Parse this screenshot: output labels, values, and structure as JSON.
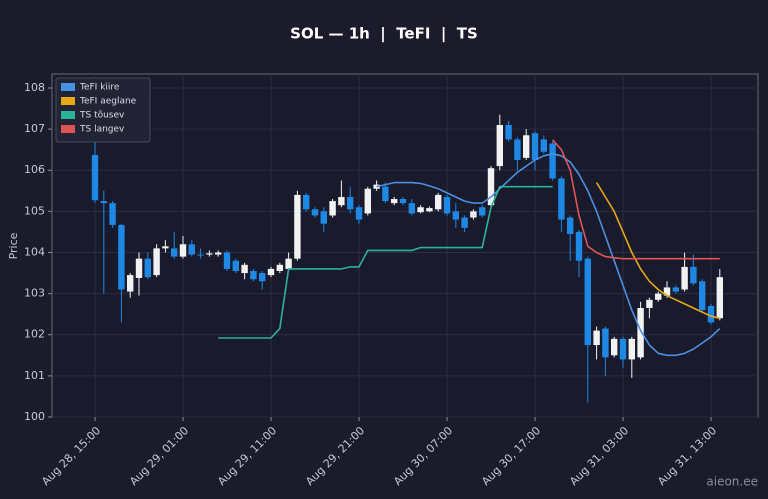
{
  "chart_data": {
    "type": "candlestick",
    "title": "SOL — 1h  |  TeFI  |  TS",
    "y_label": "Price",
    "watermark": "aieon.ee",
    "categories": [
      "Aug 28, 15:00",
      "Aug 28, 16:00",
      "Aug 28, 17:00",
      "Aug 28, 18:00",
      "Aug 28, 19:00",
      "Aug 28, 20:00",
      "Aug 28, 21:00",
      "Aug 28, 22:00",
      "Aug 28, 23:00",
      "Aug 29, 00:00",
      "Aug 29, 01:00",
      "Aug 29, 02:00",
      "Aug 29, 03:00",
      "Aug 29, 04:00",
      "Aug 29, 05:00",
      "Aug 29, 06:00",
      "Aug 29, 07:00",
      "Aug 29, 08:00",
      "Aug 29, 09:00",
      "Aug 29, 10:00",
      "Aug 29, 11:00",
      "Aug 29, 12:00",
      "Aug 29, 13:00",
      "Aug 29, 14:00",
      "Aug 29, 15:00",
      "Aug 29, 16:00",
      "Aug 29, 17:00",
      "Aug 29, 18:00",
      "Aug 29, 19:00",
      "Aug 29, 20:00",
      "Aug 29, 21:00",
      "Aug 29, 22:00",
      "Aug 29, 23:00",
      "Aug 30, 00:00",
      "Aug 30, 01:00",
      "Aug 30, 02:00",
      "Aug 30, 03:00",
      "Aug 30, 04:00",
      "Aug 30, 05:00",
      "Aug 30, 06:00",
      "Aug 30, 07:00",
      "Aug 30, 08:00",
      "Aug 30, 09:00",
      "Aug 30, 10:00",
      "Aug 30, 11:00",
      "Aug 30, 12:00",
      "Aug 30, 13:00",
      "Aug 30, 14:00",
      "Aug 30, 15:00",
      "Aug 30, 16:00",
      "Aug 30, 17:00",
      "Aug 30, 18:00",
      "Aug 30, 19:00",
      "Aug 30, 20:00",
      "Aug 30, 21:00",
      "Aug 30, 22:00",
      "Aug 30, 23:00",
      "Aug 31, 00:00",
      "Aug 31, 01:00",
      "Aug 31, 02:00",
      "Aug 31, 03:00",
      "Aug 31, 04:00",
      "Aug 31, 05:00",
      "Aug 31, 06:00",
      "Aug 31, 07:00",
      "Aug 31, 08:00",
      "Aug 31, 09:00",
      "Aug 31, 10:00",
      "Aug 31, 11:00",
      "Aug 31, 12:00",
      "Aug 31, 13:00",
      "Aug 31, 14:00"
    ],
    "open": [
      106.37,
      105.25,
      105.2,
      104.67,
      103.05,
      103.38,
      103.85,
      103.45,
      104.1,
      104.1,
      103.9,
      104.2,
      103.95,
      103.95,
      103.95,
      104.0,
      103.8,
      103.5,
      103.55,
      103.5,
      103.45,
      103.55,
      103.6,
      103.85,
      105.4,
      105.05,
      105.0,
      104.9,
      105.15,
      105.35,
      105.1,
      104.95,
      105.55,
      105.6,
      105.2,
      105.3,
      105.2,
      104.98,
      105.0,
      105.05,
      105.35,
      105.0,
      104.85,
      104.85,
      105.1,
      105.15,
      106.1,
      107.1,
      106.75,
      106.3,
      106.9,
      106.75,
      106.65,
      105.8,
      104.85,
      104.5,
      103.85,
      101.75,
      102.15,
      101.5,
      101.9,
      101.4,
      101.45,
      102.65,
      102.85,
      102.95,
      103.15,
      103.1,
      103.65,
      103.3,
      102.7,
      102.4
    ],
    "high": [
      106.7,
      105.5,
      105.25,
      104.7,
      103.5,
      104.0,
      104.0,
      104.2,
      104.3,
      104.5,
      104.4,
      104.3,
      104.1,
      104.05,
      104.05,
      104.05,
      103.85,
      103.75,
      103.6,
      103.55,
      103.65,
      103.75,
      104.0,
      105.5,
      105.45,
      105.1,
      105.1,
      105.3,
      105.75,
      105.6,
      105.15,
      105.6,
      105.75,
      105.7,
      105.35,
      105.35,
      105.3,
      105.15,
      105.12,
      105.45,
      105.4,
      105.2,
      104.9,
      105.05,
      105.15,
      106.1,
      107.35,
      107.2,
      106.8,
      107.0,
      106.95,
      106.85,
      106.7,
      105.85,
      104.9,
      104.55,
      103.9,
      102.2,
      102.2,
      101.95,
      101.95,
      101.95,
      102.8,
      102.9,
      103.05,
      103.3,
      103.2,
      104.0,
      103.95,
      103.35,
      102.75,
      103.6
    ],
    "low": [
      105.2,
      103.0,
      104.6,
      102.3,
      102.9,
      102.95,
      103.35,
      103.4,
      104.0,
      103.85,
      103.85,
      103.9,
      103.85,
      103.9,
      103.9,
      103.55,
      103.5,
      103.35,
      103.3,
      103.1,
      103.4,
      103.5,
      103.55,
      103.8,
      105.0,
      104.85,
      104.5,
      104.85,
      105.1,
      104.95,
      104.7,
      104.9,
      105.5,
      105.2,
      105.15,
      105.15,
      104.9,
      104.95,
      104.98,
      105.0,
      104.9,
      104.6,
      104.5,
      104.8,
      104.85,
      105.1,
      106.0,
      106.7,
      106.0,
      106.25,
      106.0,
      106.4,
      105.75,
      104.5,
      103.8,
      103.4,
      100.35,
      101.4,
      101.0,
      101.45,
      101.2,
      100.95,
      101.4,
      102.4,
      102.8,
      102.9,
      103.0,
      103.05,
      103.2,
      102.55,
      102.25,
      102.35
    ],
    "close": [
      105.27,
      105.2,
      104.67,
      103.1,
      103.45,
      103.85,
      103.4,
      104.1,
      104.15,
      103.9,
      104.2,
      103.95,
      103.93,
      103.98,
      104.0,
      103.6,
      103.55,
      103.7,
      103.35,
      103.3,
      103.6,
      103.7,
      103.85,
      105.4,
      105.05,
      104.9,
      104.7,
      105.25,
      105.35,
      105.05,
      104.8,
      105.55,
      105.65,
      105.25,
      105.3,
      105.2,
      104.95,
      105.1,
      105.08,
      105.4,
      104.95,
      104.8,
      104.6,
      105.0,
      104.9,
      106.05,
      107.1,
      106.75,
      106.25,
      106.85,
      106.25,
      106.45,
      105.8,
      104.8,
      104.45,
      103.8,
      101.75,
      102.1,
      101.45,
      101.9,
      101.4,
      101.9,
      102.65,
      102.85,
      103.0,
      103.15,
      103.05,
      103.65,
      103.25,
      102.6,
      102.3,
      103.4
    ],
    "up_color": "#f2f2f2",
    "down_color": "#1e88e5",
    "series": [
      {
        "name": "TeFI kiire",
        "color": "#4a90e2",
        "values": [
          null,
          null,
          null,
          null,
          null,
          null,
          null,
          null,
          null,
          null,
          null,
          null,
          null,
          null,
          null,
          null,
          null,
          null,
          null,
          null,
          null,
          null,
          null,
          null,
          null,
          null,
          null,
          null,
          null,
          null,
          null,
          null,
          105.6,
          105.65,
          105.7,
          105.7,
          105.7,
          105.68,
          105.62,
          105.55,
          105.45,
          105.35,
          105.25,
          105.2,
          105.2,
          105.35,
          105.55,
          105.75,
          105.95,
          106.1,
          106.25,
          106.35,
          106.4,
          106.35,
          106.2,
          105.9,
          105.5,
          105.0,
          104.4,
          103.8,
          103.2,
          102.6,
          102.1,
          101.75,
          101.55,
          101.5,
          101.5,
          101.55,
          101.65,
          101.8,
          101.95,
          102.15
        ]
      },
      {
        "name": "TeFI aeglane",
        "color": "#e6a817",
        "values": [
          null,
          null,
          null,
          null,
          null,
          null,
          null,
          null,
          null,
          null,
          null,
          null,
          null,
          null,
          null,
          null,
          null,
          null,
          null,
          null,
          null,
          null,
          null,
          null,
          null,
          null,
          null,
          null,
          null,
          null,
          null,
          null,
          null,
          null,
          null,
          null,
          null,
          null,
          null,
          null,
          null,
          null,
          null,
          null,
          null,
          null,
          null,
          null,
          null,
          null,
          null,
          null,
          null,
          null,
          null,
          null,
          null,
          105.7,
          105.35,
          105.0,
          104.5,
          104.0,
          103.6,
          103.3,
          103.1,
          102.95,
          102.85,
          102.75,
          102.65,
          102.55,
          102.45,
          102.4
        ]
      },
      {
        "name": "TS tõusev",
        "color": "#2bb39a",
        "values": [
          null,
          null,
          null,
          null,
          null,
          null,
          null,
          null,
          null,
          null,
          null,
          null,
          null,
          null,
          101.92,
          101.92,
          101.92,
          101.92,
          101.92,
          101.92,
          101.92,
          102.15,
          103.6,
          103.6,
          103.6,
          103.6,
          103.6,
          103.6,
          103.6,
          103.65,
          103.65,
          104.05,
          104.05,
          104.05,
          104.05,
          104.05,
          104.05,
          104.12,
          104.12,
          104.12,
          104.12,
          104.12,
          104.12,
          104.12,
          104.12,
          105.1,
          105.6,
          105.6,
          105.6,
          105.6,
          105.6,
          105.6,
          105.6,
          null,
          null,
          null,
          null,
          null,
          null,
          null,
          null,
          null,
          null,
          null,
          null,
          null,
          null,
          null,
          null,
          null,
          null,
          null
        ]
      },
      {
        "name": "TS langev",
        "color": "#e05555",
        "values": [
          null,
          null,
          null,
          null,
          null,
          null,
          null,
          null,
          null,
          null,
          null,
          null,
          null,
          null,
          null,
          null,
          null,
          null,
          null,
          null,
          null,
          null,
          null,
          null,
          null,
          null,
          null,
          null,
          null,
          null,
          null,
          null,
          null,
          null,
          null,
          null,
          null,
          null,
          null,
          null,
          null,
          null,
          null,
          null,
          null,
          null,
          null,
          null,
          null,
          null,
          null,
          null,
          106.74,
          106.5,
          106.0,
          104.9,
          104.15,
          104.0,
          103.9,
          103.87,
          103.85,
          103.85,
          103.85,
          103.85,
          103.85,
          103.85,
          103.85,
          103.85,
          103.85,
          103.85,
          103.85,
          103.85
        ]
      }
    ],
    "ylim": [
      100,
      108.34
    ],
    "yticks": [
      100,
      101,
      102,
      103,
      104,
      105,
      106,
      107,
      108
    ],
    "xticks": [
      "Aug 28, 15:00",
      "Aug 29, 01:00",
      "Aug 29, 11:00",
      "Aug 29, 21:00",
      "Aug 30, 07:00",
      "Aug 30, 17:00",
      "Aug 31, 03:00",
      "Aug 31, 13:00"
    ],
    "grid": true,
    "legend": "upper left"
  }
}
